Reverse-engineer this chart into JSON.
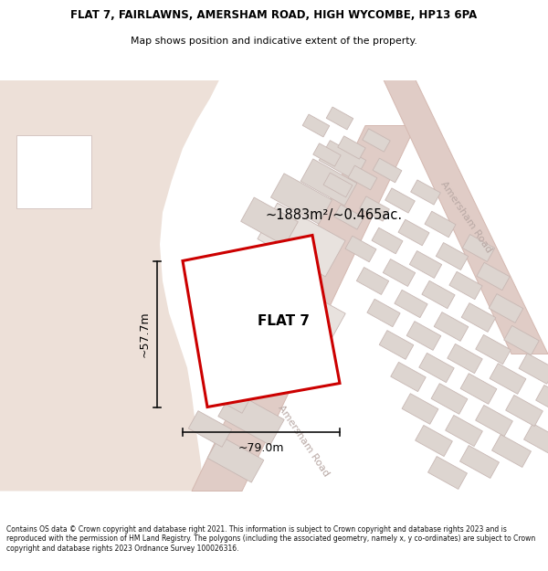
{
  "title_line1": "FLAT 7, FAIRLAWNS, AMERSHAM ROAD, HIGH WYCOMBE, HP13 6PA",
  "title_line2": "Map shows position and indicative extent of the property.",
  "label_flat": "FLAT 7",
  "label_area": "~1883m²/~0.465ac.",
  "label_width": "~79.0m",
  "label_height": "~57.7m",
  "road_label_lower": "Amersham Road",
  "road_label_upper": "Amersham Road",
  "footer_text": "Contains OS data © Crown copyright and database right 2021. This information is subject to Crown copyright and database rights 2023 and is reproduced with the permission of HM Land Registry. The polygons (including the associated geometry, namely x, y co-ordinates) are subject to Crown copyright and database rights 2023 Ordnance Survey 100026316.",
  "bg_tan": "#ede0d8",
  "bg_light": "#f2ece8",
  "road_fill": "#e0ccc6",
  "road_stroke": "#d4b8b0",
  "building_fill": "#ddd5d0",
  "building_stroke": "#c8b8b4",
  "property_fill": "#ffffff",
  "property_stroke": "#cc0000",
  "dim_color": "#111111",
  "road_text_color": "#b8a8a4",
  "title_color": "#000000",
  "footer_color": "#111111",
  "property_lw": 2.2
}
